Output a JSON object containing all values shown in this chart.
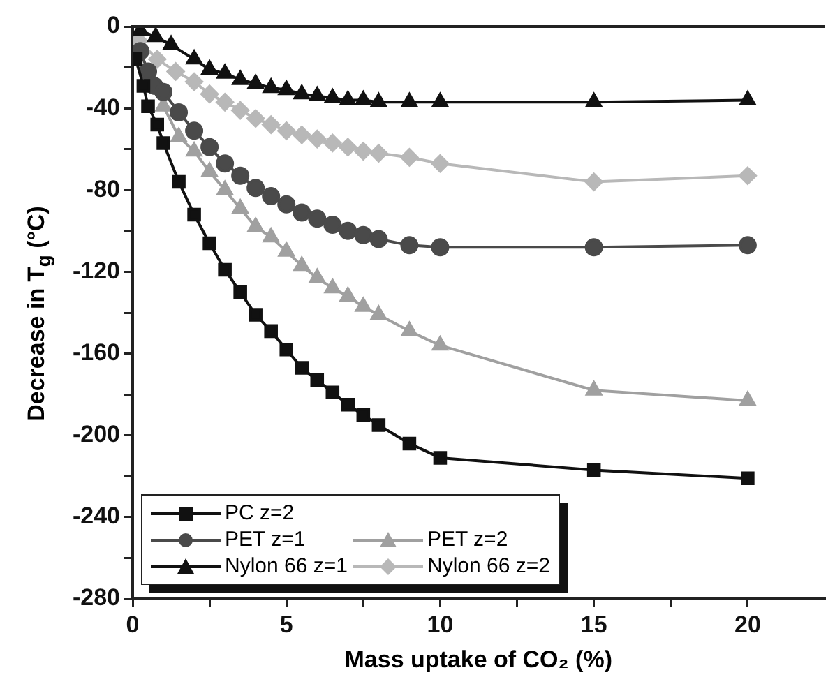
{
  "chart_data": {
    "type": "line",
    "xlabel": "Mass uptake of CO₂ (%)",
    "ylabel": "Decrease in T$_{g}$ (°C)",
    "xlim": [
      0,
      22.5
    ],
    "xticks": [
      0,
      {
        "value": 2.5,
        "label": null
      },
      5,
      {
        "value": 7.5,
        "label": null
      },
      10,
      {
        "value": 12.5,
        "label": null
      },
      15,
      {
        "value": 17.5,
        "label": null
      },
      20
    ],
    "ylim": [
      -280,
      0
    ],
    "yticks": [
      -280,
      {
        "value": -260,
        "label": null
      },
      -240,
      {
        "value": -220,
        "label": null
      },
      -200,
      {
        "value": -180,
        "label": null
      },
      -160,
      {
        "value": -140,
        "label": null
      },
      -120,
      {
        "value": -100,
        "label": null
      },
      -80,
      {
        "value": -60,
        "label": null
      },
      -40,
      {
        "value": -20,
        "label": null
      },
      0
    ],
    "grid": false,
    "legend": "bottom left",
    "series": [
      {
        "name": "PC z=2",
        "color": "#111111",
        "marker": "square",
        "x": [
          0.1,
          0.35,
          0.5,
          0.8,
          1,
          1.5,
          2,
          2.5,
          3,
          3.5,
          4,
          4.5,
          5,
          5.5,
          6,
          6.5,
          7,
          7.5,
          8,
          9,
          10,
          15,
          20
        ],
        "values": [
          -16,
          -29,
          -39,
          -48,
          -57,
          -76,
          -92,
          -106,
          -119,
          -130,
          -141,
          -149,
          -158,
          -167,
          -173,
          -179,
          -185,
          -190,
          -195,
          -204,
          -211,
          -217,
          -221
        ]
      },
      {
        "name": "PET z=1",
        "color": "#4a4a4a",
        "marker": "circle",
        "x": [
          0.25,
          0.5,
          0.7,
          1,
          1.5,
          2,
          2.5,
          3,
          3.5,
          4,
          4.5,
          5,
          5.5,
          6,
          6.5,
          7,
          7.5,
          8,
          9,
          10,
          15,
          20
        ],
        "values": [
          -12,
          -22,
          -29,
          -32,
          -42,
          -51,
          -59,
          -67,
          -73,
          -79,
          -83,
          -87,
          -91,
          -94,
          -97,
          -100,
          -102,
          -104,
          -107,
          -108,
          -108,
          -107
        ]
      },
      {
        "name": "PET z=2",
        "color": "#a0a0a0",
        "marker": "triangle",
        "x": [
          1,
          1.5,
          2,
          2.5,
          3,
          3.5,
          4,
          4.5,
          5,
          5.5,
          6,
          6.5,
          7,
          7.5,
          8,
          9,
          10,
          15,
          20
        ],
        "values": [
          -39,
          -54,
          -61,
          -71,
          -80,
          -89,
          -98,
          -103,
          -110,
          -117,
          -123,
          -128,
          -132,
          -137,
          -141,
          -149,
          -156,
          -178,
          -183
        ]
      },
      {
        "name": "Nylon 66 z=1",
        "color": "#111111",
        "marker": "triangle",
        "x": [
          0.25,
          0.75,
          1.25,
          2,
          2.5,
          3,
          3.5,
          4,
          4.5,
          5,
          5.5,
          6,
          6.5,
          7,
          7.5,
          8,
          9,
          10,
          15,
          20
        ],
        "values": [
          -2,
          -5,
          -9,
          -16,
          -21,
          -23,
          -26,
          -28,
          -30,
          -31,
          -33,
          -34,
          -35,
          -36,
          -36,
          -37,
          -37,
          -37,
          -37,
          -36
        ]
      },
      {
        "name": "Nylon 66 z=2",
        "color": "#b8b8b8",
        "marker": "diamond",
        "x": [
          0.2,
          0.8,
          1.4,
          2,
          2.5,
          3,
          3.5,
          4,
          4.5,
          5,
          5.5,
          6,
          6.5,
          7,
          7.5,
          8,
          9,
          10,
          15,
          20
        ],
        "values": [
          -7,
          -16,
          -22,
          -27,
          -33,
          -37,
          -41,
          -45,
          -48,
          -51,
          -53,
          -55,
          -57,
          -59,
          -61,
          -62,
          -64,
          -67,
          -76,
          -73
        ]
      }
    ]
  }
}
